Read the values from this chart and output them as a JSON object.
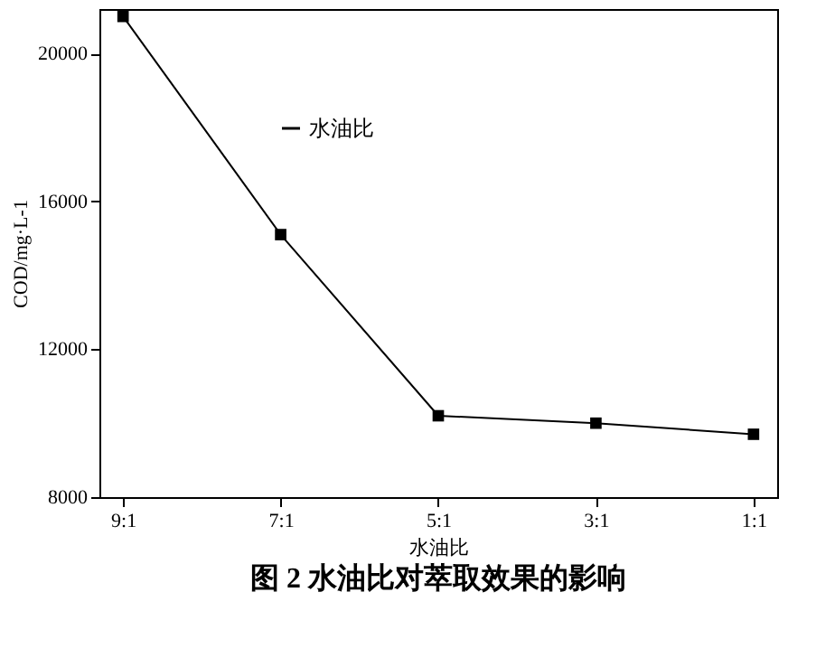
{
  "chart_data": {
    "type": "line",
    "title": "图 2   水油比对萃取效果的影响",
    "xlabel": "水油比",
    "ylabel": "COD/mg·L-1",
    "categories": [
      "9:1",
      "7:1",
      "5:1",
      "3:1",
      "1:1"
    ],
    "series": [
      {
        "name": "水油比",
        "color": "#000000",
        "values": [
          21000,
          15100,
          10200,
          10000,
          9700
        ]
      }
    ],
    "ylim": [
      8000,
      21200
    ],
    "yticks": [
      8000,
      12000,
      16000,
      20000
    ],
    "grid": false,
    "legend": "top left",
    "marker": "square",
    "line_style": "solid"
  }
}
